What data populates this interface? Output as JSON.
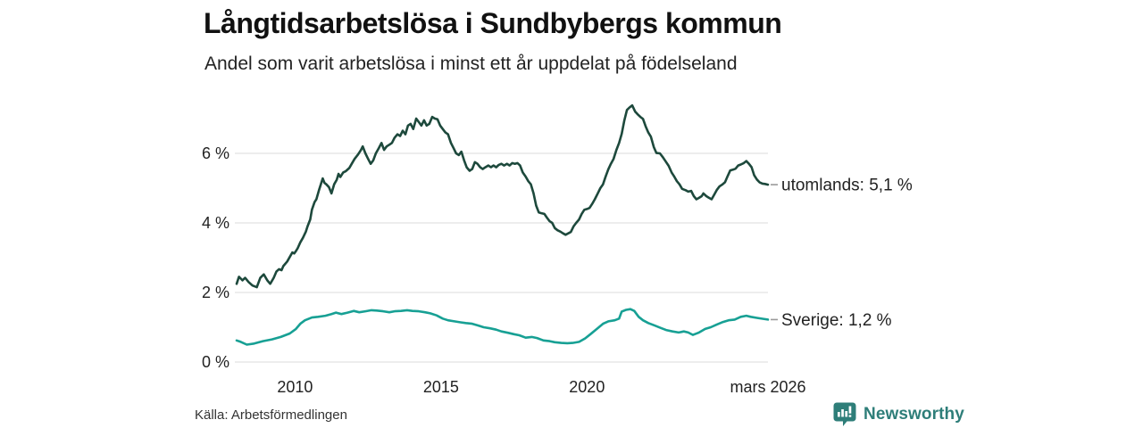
{
  "header": {
    "title": "Långtidsarbetslösa i Sundbybergs kommun",
    "subtitle": "Andel som varit arbetslösa i minst ett år uppdelat på födelseland"
  },
  "footer": {
    "source": "Källa: Arbetsförmedlingen",
    "brand_name": "Newsworthy",
    "brand_color": "#2e7e79"
  },
  "chart_data": {
    "type": "line",
    "title": "Långtidsarbetslösa i Sundbybergs kommun",
    "subtitle": "Andel som varit arbetslösa i minst ett år uppdelat på födelseland",
    "xlabel": "",
    "ylabel": "",
    "x_unit": "year",
    "y_unit": "%",
    "xlim": [
      2008.0,
      2026.2
    ],
    "ylim": [
      0,
      7.6
    ],
    "grid": "horizontal",
    "gridline_color": "#e2e2e2",
    "connector_color": "#9a9a9a",
    "label_color": "#222222",
    "y_ticks": [
      {
        "value": 0,
        "label": "0 %"
      },
      {
        "value": 2,
        "label": "2 %"
      },
      {
        "value": 4,
        "label": "4 %"
      },
      {
        "value": 6,
        "label": "6 %"
      }
    ],
    "x_ticks": [
      {
        "value": 2010,
        "label": "2010"
      },
      {
        "value": 2015,
        "label": "2015"
      },
      {
        "value": 2020,
        "label": "2020"
      },
      {
        "value": 2026.2,
        "label": "mars 2026"
      }
    ],
    "series": [
      {
        "name": "utomlands",
        "label": "utomlands: 5,1 %",
        "end_value": "5,1 %",
        "color": "#1d493c",
        "points": [
          [
            2008.0,
            2.25
          ],
          [
            2008.08,
            2.45
          ],
          [
            2008.2,
            2.35
          ],
          [
            2008.29,
            2.42
          ],
          [
            2008.41,
            2.3
          ],
          [
            2008.54,
            2.2
          ],
          [
            2008.69,
            2.15
          ],
          [
            2008.81,
            2.42
          ],
          [
            2008.93,
            2.52
          ],
          [
            2009.05,
            2.35
          ],
          [
            2009.15,
            2.25
          ],
          [
            2009.27,
            2.42
          ],
          [
            2009.36,
            2.6
          ],
          [
            2009.45,
            2.67
          ],
          [
            2009.54,
            2.64
          ],
          [
            2009.6,
            2.76
          ],
          [
            2009.73,
            2.89
          ],
          [
            2009.82,
            3.02
          ],
          [
            2009.91,
            3.15
          ],
          [
            2009.97,
            3.12
          ],
          [
            2010.03,
            3.19
          ],
          [
            2010.09,
            3.27
          ],
          [
            2010.18,
            3.44
          ],
          [
            2010.27,
            3.57
          ],
          [
            2010.37,
            3.75
          ],
          [
            2010.43,
            3.9
          ],
          [
            2010.52,
            4.1
          ],
          [
            2010.58,
            4.38
          ],
          [
            2010.67,
            4.6
          ],
          [
            2010.73,
            4.68
          ],
          [
            2010.82,
            4.94
          ],
          [
            2010.95,
            5.28
          ],
          [
            2011.01,
            5.15
          ],
          [
            2011.07,
            5.11
          ],
          [
            2011.16,
            5.03
          ],
          [
            2011.25,
            4.85
          ],
          [
            2011.34,
            5.11
          ],
          [
            2011.43,
            5.24
          ],
          [
            2011.49,
            5.41
          ],
          [
            2011.55,
            5.32
          ],
          [
            2011.65,
            5.45
          ],
          [
            2011.74,
            5.49
          ],
          [
            2011.86,
            5.58
          ],
          [
            2011.95,
            5.71
          ],
          [
            2012.04,
            5.84
          ],
          [
            2012.16,
            5.97
          ],
          [
            2012.26,
            6.1
          ],
          [
            2012.32,
            6.2
          ],
          [
            2012.41,
            6.0
          ],
          [
            2012.5,
            5.85
          ],
          [
            2012.59,
            5.7
          ],
          [
            2012.68,
            5.8
          ],
          [
            2012.77,
            6.0
          ],
          [
            2012.87,
            6.15
          ],
          [
            2012.96,
            6.3
          ],
          [
            2013.05,
            6.1
          ],
          [
            2013.14,
            6.2
          ],
          [
            2013.23,
            6.25
          ],
          [
            2013.32,
            6.3
          ],
          [
            2013.41,
            6.45
          ],
          [
            2013.51,
            6.55
          ],
          [
            2013.6,
            6.5
          ],
          [
            2013.69,
            6.65
          ],
          [
            2013.78,
            6.55
          ],
          [
            2013.87,
            6.8
          ],
          [
            2013.96,
            6.85
          ],
          [
            2014.05,
            6.7
          ],
          [
            2014.15,
            7.0
          ],
          [
            2014.24,
            6.9
          ],
          [
            2014.33,
            6.8
          ],
          [
            2014.42,
            6.95
          ],
          [
            2014.51,
            6.8
          ],
          [
            2014.6,
            6.85
          ],
          [
            2014.7,
            7.05
          ],
          [
            2014.79,
            7.0
          ],
          [
            2014.88,
            6.98
          ],
          [
            2014.97,
            6.8
          ],
          [
            2015.06,
            6.7
          ],
          [
            2015.15,
            6.6
          ],
          [
            2015.24,
            6.55
          ],
          [
            2015.34,
            6.3
          ],
          [
            2015.43,
            6.15
          ],
          [
            2015.52,
            6.0
          ],
          [
            2015.61,
            5.95
          ],
          [
            2015.7,
            6.05
          ],
          [
            2015.79,
            5.8
          ],
          [
            2015.88,
            5.6
          ],
          [
            2015.98,
            5.5
          ],
          [
            2016.07,
            5.55
          ],
          [
            2016.16,
            5.75
          ],
          [
            2016.25,
            5.7
          ],
          [
            2016.34,
            5.6
          ],
          [
            2016.43,
            5.55
          ],
          [
            2016.52,
            5.6
          ],
          [
            2016.62,
            5.65
          ],
          [
            2016.71,
            5.6
          ],
          [
            2016.8,
            5.65
          ],
          [
            2016.89,
            5.6
          ],
          [
            2016.98,
            5.67
          ],
          [
            2017.07,
            5.7
          ],
          [
            2017.16,
            5.65
          ],
          [
            2017.26,
            5.7
          ],
          [
            2017.35,
            5.65
          ],
          [
            2017.44,
            5.72
          ],
          [
            2017.53,
            5.7
          ],
          [
            2017.62,
            5.72
          ],
          [
            2017.71,
            5.65
          ],
          [
            2017.8,
            5.45
          ],
          [
            2017.9,
            5.33
          ],
          [
            2017.99,
            5.2
          ],
          [
            2018.08,
            5.11
          ],
          [
            2018.17,
            4.85
          ],
          [
            2018.26,
            4.5
          ],
          [
            2018.35,
            4.3
          ],
          [
            2018.44,
            4.28
          ],
          [
            2018.54,
            4.26
          ],
          [
            2018.63,
            4.15
          ],
          [
            2018.72,
            4.05
          ],
          [
            2018.81,
            4.0
          ],
          [
            2018.9,
            3.85
          ],
          [
            2018.99,
            3.79
          ],
          [
            2019.09,
            3.75
          ],
          [
            2019.18,
            3.7
          ],
          [
            2019.27,
            3.66
          ],
          [
            2019.36,
            3.7
          ],
          [
            2019.45,
            3.74
          ],
          [
            2019.54,
            3.9
          ],
          [
            2019.63,
            4.0
          ],
          [
            2019.73,
            4.1
          ],
          [
            2019.82,
            4.26
          ],
          [
            2019.91,
            4.38
          ],
          [
            2020.0,
            4.4
          ],
          [
            2020.09,
            4.43
          ],
          [
            2020.18,
            4.55
          ],
          [
            2020.27,
            4.68
          ],
          [
            2020.37,
            4.85
          ],
          [
            2020.46,
            5.0
          ],
          [
            2020.55,
            5.11
          ],
          [
            2020.64,
            5.33
          ],
          [
            2020.73,
            5.54
          ],
          [
            2020.82,
            5.7
          ],
          [
            2020.91,
            5.84
          ],
          [
            2021.01,
            6.1
          ],
          [
            2021.1,
            6.3
          ],
          [
            2021.19,
            6.56
          ],
          [
            2021.28,
            6.95
          ],
          [
            2021.37,
            7.25
          ],
          [
            2021.46,
            7.32
          ],
          [
            2021.55,
            7.38
          ],
          [
            2021.65,
            7.2
          ],
          [
            2021.74,
            7.12
          ],
          [
            2021.83,
            7.05
          ],
          [
            2021.92,
            6.99
          ],
          [
            2022.01,
            6.78
          ],
          [
            2022.1,
            6.6
          ],
          [
            2022.19,
            6.48
          ],
          [
            2022.29,
            6.18
          ],
          [
            2022.38,
            6.01
          ],
          [
            2022.5,
            6.0
          ],
          [
            2022.59,
            5.9
          ],
          [
            2022.68,
            5.79
          ],
          [
            2022.8,
            5.64
          ],
          [
            2022.9,
            5.45
          ],
          [
            2022.99,
            5.33
          ],
          [
            2023.08,
            5.2
          ],
          [
            2023.17,
            5.11
          ],
          [
            2023.26,
            4.98
          ],
          [
            2023.38,
            4.94
          ],
          [
            2023.47,
            4.9
          ],
          [
            2023.57,
            4.92
          ],
          [
            2023.66,
            4.77
          ],
          [
            2023.75,
            4.68
          ],
          [
            2023.84,
            4.72
          ],
          [
            2023.93,
            4.77
          ],
          [
            2023.99,
            4.85
          ],
          [
            2024.09,
            4.77
          ],
          [
            2024.18,
            4.72
          ],
          [
            2024.27,
            4.68
          ],
          [
            2024.36,
            4.81
          ],
          [
            2024.45,
            4.95
          ],
          [
            2024.54,
            5.05
          ],
          [
            2024.63,
            5.1
          ],
          [
            2024.73,
            5.17
          ],
          [
            2024.82,
            5.35
          ],
          [
            2024.91,
            5.51
          ],
          [
            2025.0,
            5.53
          ],
          [
            2025.09,
            5.56
          ],
          [
            2025.18,
            5.65
          ],
          [
            2025.27,
            5.68
          ],
          [
            2025.37,
            5.72
          ],
          [
            2025.46,
            5.78
          ],
          [
            2025.55,
            5.7
          ],
          [
            2025.64,
            5.6
          ],
          [
            2025.73,
            5.37
          ],
          [
            2025.82,
            5.25
          ],
          [
            2025.91,
            5.17
          ],
          [
            2026.01,
            5.13
          ],
          [
            2026.1,
            5.12
          ],
          [
            2026.2,
            5.1
          ]
        ]
      },
      {
        "name": "Sverige",
        "label": "Sverige: 1,2 %",
        "end_value": "1,2 %",
        "color": "#17a094",
        "points": [
          [
            2008.0,
            0.62
          ],
          [
            2008.14,
            0.58
          ],
          [
            2008.35,
            0.5
          ],
          [
            2008.6,
            0.53
          ],
          [
            2008.9,
            0.6
          ],
          [
            2009.21,
            0.65
          ],
          [
            2009.51,
            0.72
          ],
          [
            2009.82,
            0.82
          ],
          [
            2010.03,
            0.95
          ],
          [
            2010.18,
            1.1
          ],
          [
            2010.34,
            1.2
          ],
          [
            2010.58,
            1.28
          ],
          [
            2010.79,
            1.3
          ],
          [
            2011.04,
            1.33
          ],
          [
            2011.25,
            1.38
          ],
          [
            2011.4,
            1.42
          ],
          [
            2011.59,
            1.38
          ],
          [
            2011.8,
            1.42
          ],
          [
            2012.01,
            1.47
          ],
          [
            2012.2,
            1.43
          ],
          [
            2012.41,
            1.46
          ],
          [
            2012.62,
            1.49
          ],
          [
            2012.8,
            1.48
          ],
          [
            2013.02,
            1.46
          ],
          [
            2013.23,
            1.43
          ],
          [
            2013.41,
            1.46
          ],
          [
            2013.63,
            1.47
          ],
          [
            2013.84,
            1.49
          ],
          [
            2014.02,
            1.47
          ],
          [
            2014.24,
            1.46
          ],
          [
            2014.45,
            1.43
          ],
          [
            2014.63,
            1.4
          ],
          [
            2014.85,
            1.34
          ],
          [
            2015.06,
            1.25
          ],
          [
            2015.24,
            1.2
          ],
          [
            2015.46,
            1.17
          ],
          [
            2015.67,
            1.14
          ],
          [
            2015.85,
            1.12
          ],
          [
            2016.07,
            1.1
          ],
          [
            2016.28,
            1.05
          ],
          [
            2016.46,
            1.0
          ],
          [
            2016.68,
            0.97
          ],
          [
            2016.89,
            0.93
          ],
          [
            2017.07,
            0.88
          ],
          [
            2017.29,
            0.84
          ],
          [
            2017.5,
            0.8
          ],
          [
            2017.68,
            0.77
          ],
          [
            2017.9,
            0.7
          ],
          [
            2018.11,
            0.72
          ],
          [
            2018.29,
            0.69
          ],
          [
            2018.51,
            0.62
          ],
          [
            2018.72,
            0.6
          ],
          [
            2018.9,
            0.57
          ],
          [
            2019.12,
            0.55
          ],
          [
            2019.33,
            0.54
          ],
          [
            2019.51,
            0.55
          ],
          [
            2019.73,
            0.58
          ],
          [
            2019.94,
            0.68
          ],
          [
            2020.12,
            0.8
          ],
          [
            2020.34,
            0.95
          ],
          [
            2020.55,
            1.1
          ],
          [
            2020.73,
            1.17
          ],
          [
            2020.95,
            1.2
          ],
          [
            2021.1,
            1.25
          ],
          [
            2021.19,
            1.45
          ],
          [
            2021.34,
            1.5
          ],
          [
            2021.49,
            1.52
          ],
          [
            2021.62,
            1.47
          ],
          [
            2021.77,
            1.3
          ],
          [
            2021.92,
            1.2
          ],
          [
            2022.1,
            1.12
          ],
          [
            2022.32,
            1.05
          ],
          [
            2022.53,
            0.98
          ],
          [
            2022.71,
            0.92
          ],
          [
            2022.93,
            0.88
          ],
          [
            2023.14,
            0.85
          ],
          [
            2023.32,
            0.88
          ],
          [
            2023.47,
            0.85
          ],
          [
            2023.63,
            0.78
          ],
          [
            2023.84,
            0.85
          ],
          [
            2024.05,
            0.95
          ],
          [
            2024.24,
            1.0
          ],
          [
            2024.45,
            1.08
          ],
          [
            2024.66,
            1.15
          ],
          [
            2024.85,
            1.2
          ],
          [
            2025.06,
            1.22
          ],
          [
            2025.27,
            1.3
          ],
          [
            2025.46,
            1.33
          ],
          [
            2025.61,
            1.3
          ],
          [
            2025.82,
            1.27
          ],
          [
            2026.04,
            1.24
          ],
          [
            2026.2,
            1.22
          ]
        ]
      }
    ],
    "legend_position": "right-of-line-end"
  }
}
